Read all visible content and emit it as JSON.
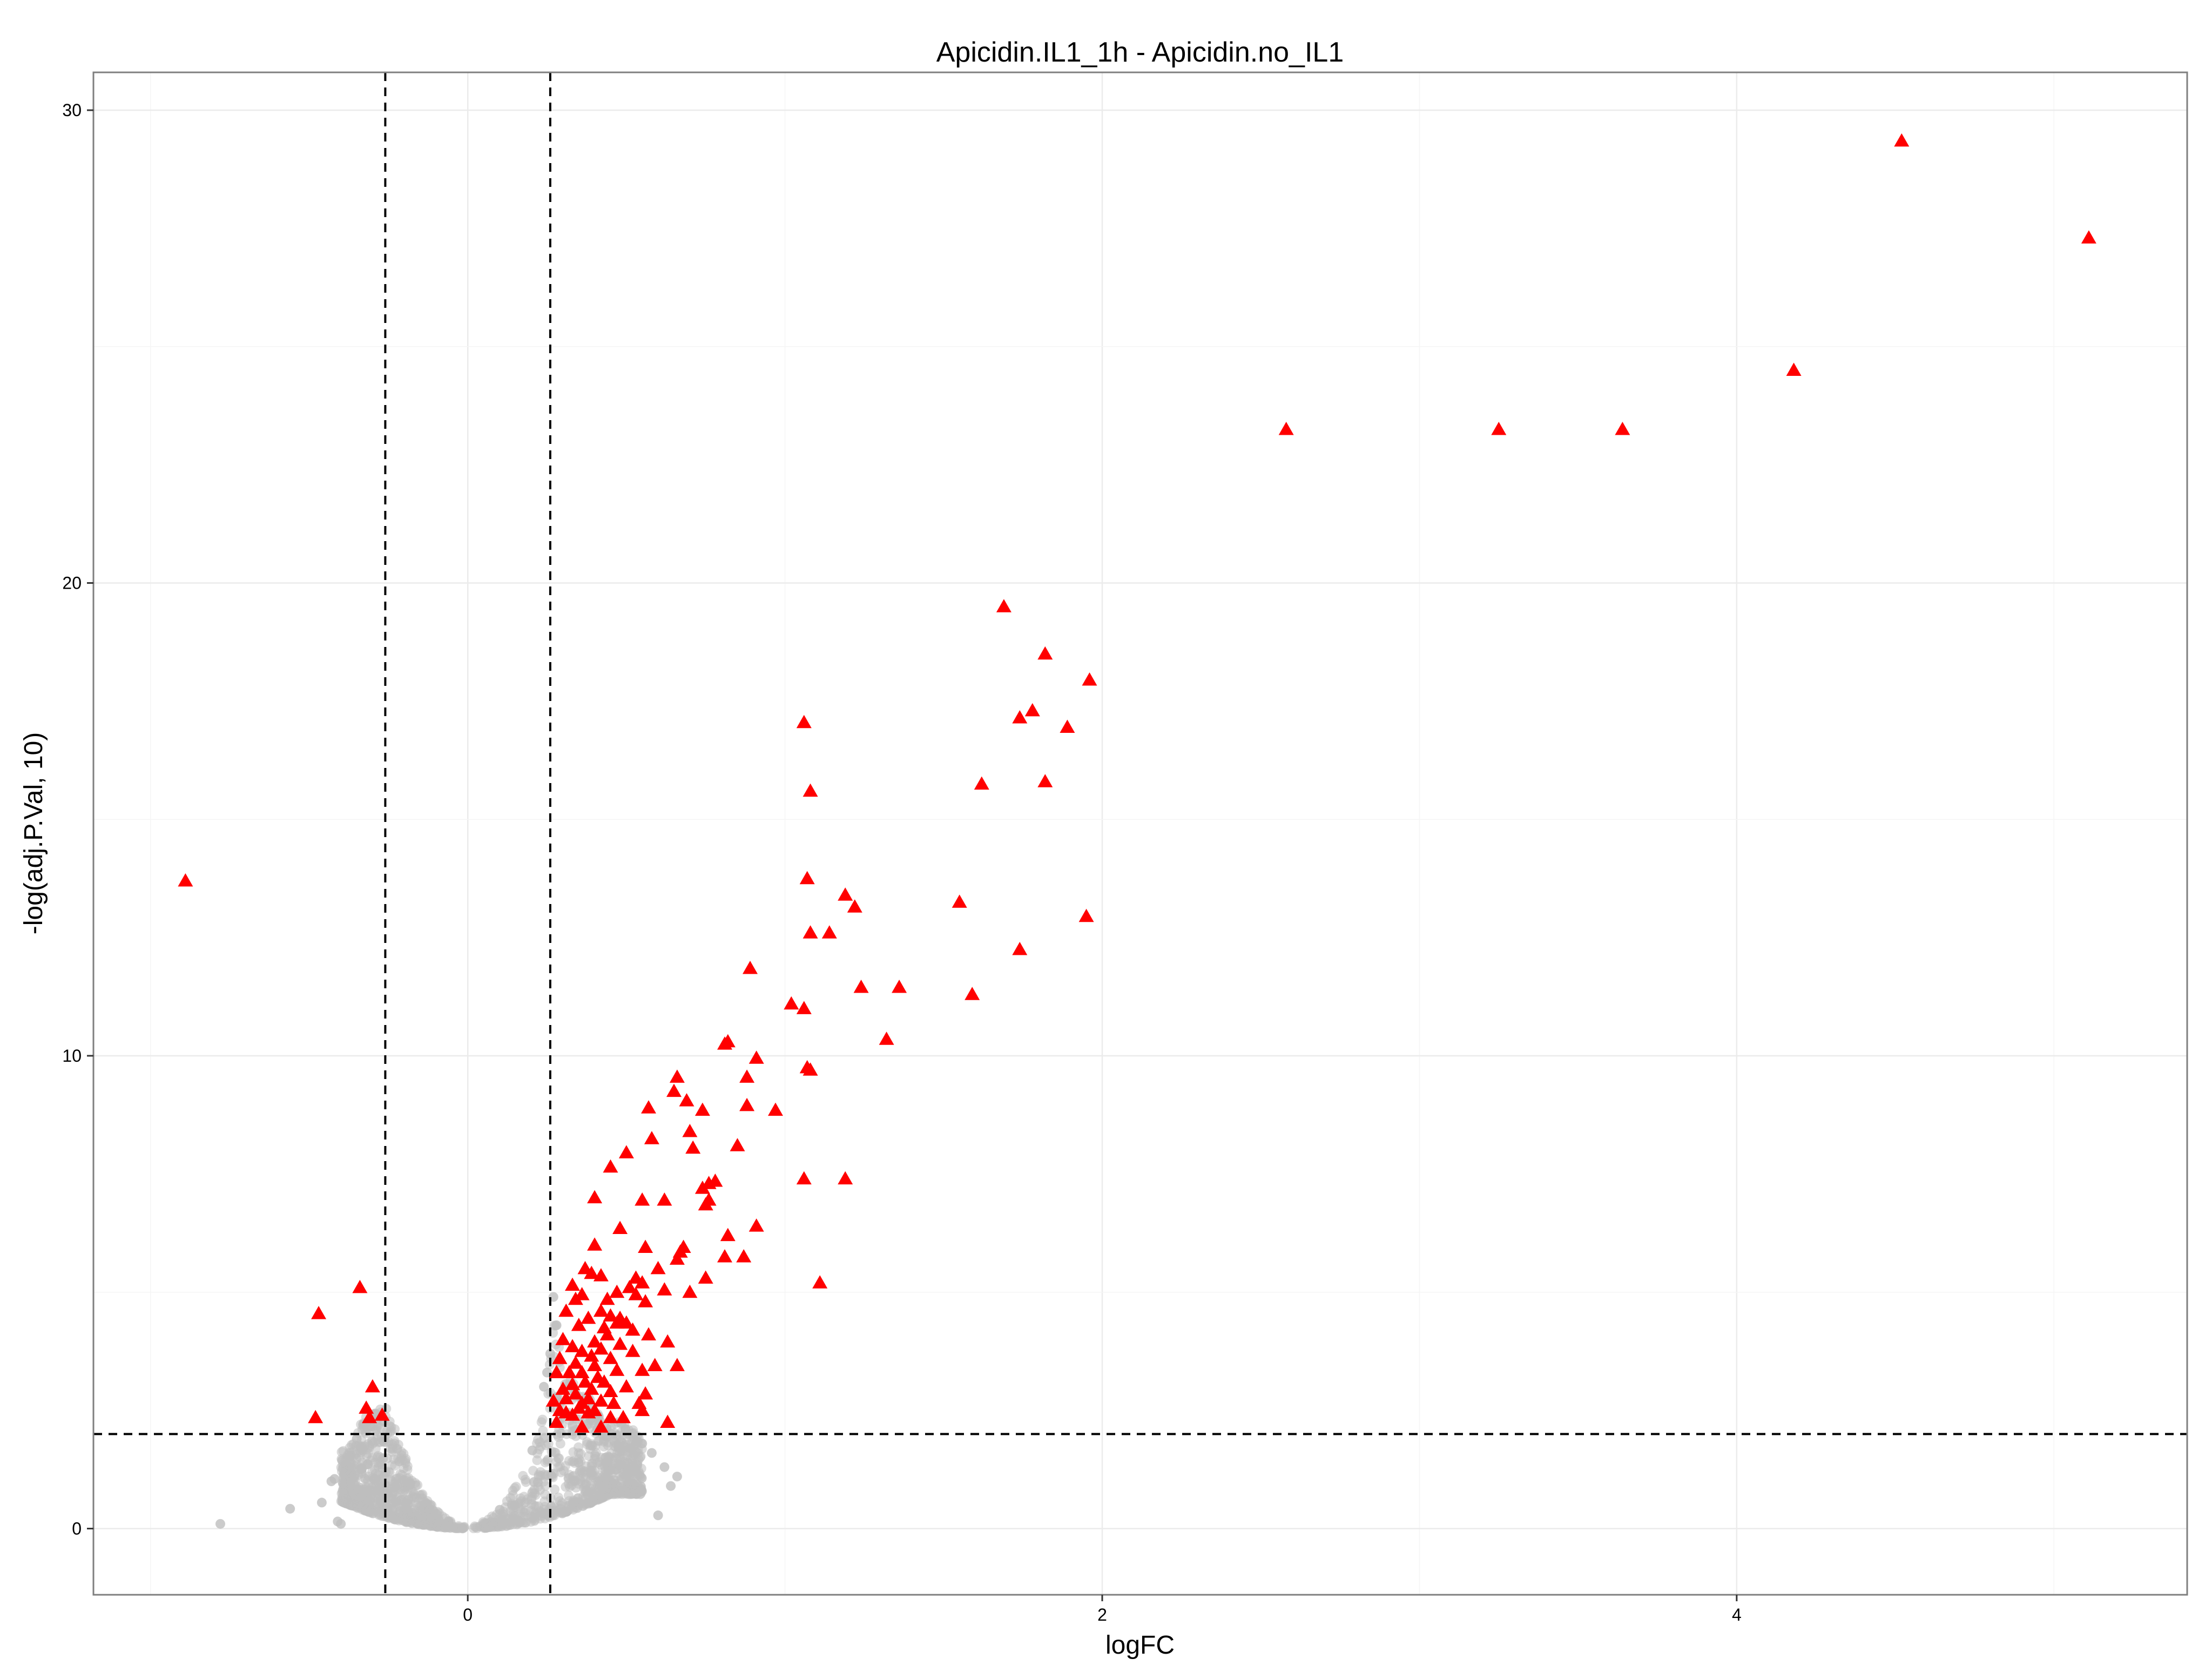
{
  "chart_data": {
    "type": "scatter",
    "title": "Apicidin.IL1_1h - Apicidin.no_IL1",
    "xlabel": "logFC",
    "ylabel": "-log(adj.P.Val, 10)",
    "xlim": [
      -1.18,
      5.42
    ],
    "ylim": [
      -1.4,
      30.8
    ],
    "x_ticks": [
      0,
      2,
      4
    ],
    "x_tick_labels": [
      "0",
      "2",
      "4"
    ],
    "y_ticks": [
      0,
      10,
      20,
      30
    ],
    "y_tick_labels": [
      "0",
      "10",
      "20",
      "30"
    ],
    "grid": true,
    "legend": "none",
    "thresholds": {
      "logFC": [
        -0.26,
        0.26
      ],
      "neg_log_adj_p": 2
    },
    "colors": {
      "significant": "#ff0000",
      "not_significant": "#bebebe",
      "grid_major": "#ebebeb",
      "grid_minor": "#f5f5f5",
      "threshold_line": "#000000",
      "panel_border": "#7f7f7f"
    },
    "series": [
      {
        "marker": "triangle",
        "color": "#ff0000",
        "points": [
          [
            -0.89,
            13.7
          ],
          [
            -0.47,
            4.55
          ],
          [
            -0.34,
            5.1
          ],
          [
            -0.48,
            2.35
          ],
          [
            -0.3,
            3.0
          ],
          [
            -0.32,
            2.55
          ],
          [
            -0.31,
            2.35
          ],
          [
            -0.27,
            2.4
          ],
          [
            4.52,
            29.35
          ],
          [
            5.11,
            27.3
          ],
          [
            4.18,
            24.5
          ],
          [
            3.64,
            23.25
          ],
          [
            3.25,
            23.25
          ],
          [
            2.58,
            23.25
          ],
          [
            1.69,
            19.5
          ],
          [
            1.82,
            18.5
          ],
          [
            1.96,
            17.95
          ],
          [
            1.78,
            17.3
          ],
          [
            1.74,
            17.15
          ],
          [
            1.89,
            16.95
          ],
          [
            1.06,
            17.05
          ],
          [
            1.08,
            15.6
          ],
          [
            1.62,
            15.75
          ],
          [
            1.82,
            15.8
          ],
          [
            1.07,
            13.75
          ],
          [
            1.55,
            13.25
          ],
          [
            1.19,
            13.4
          ],
          [
            1.22,
            13.15
          ],
          [
            1.95,
            12.95
          ],
          [
            1.08,
            12.6
          ],
          [
            1.14,
            12.6
          ],
          [
            1.74,
            12.25
          ],
          [
            0.89,
            11.85
          ],
          [
            1.24,
            11.45
          ],
          [
            1.36,
            11.45
          ],
          [
            1.59,
            11.3
          ],
          [
            1.02,
            11.1
          ],
          [
            1.06,
            11.0
          ],
          [
            1.32,
            10.35
          ],
          [
            0.81,
            10.25
          ],
          [
            0.82,
            10.3
          ],
          [
            0.91,
            9.95
          ],
          [
            1.07,
            9.75
          ],
          [
            1.08,
            9.7
          ],
          [
            0.66,
            9.55
          ],
          [
            0.88,
            9.55
          ],
          [
            0.65,
            9.25
          ],
          [
            0.69,
            9.05
          ],
          [
            0.57,
            8.9
          ],
          [
            0.88,
            8.95
          ],
          [
            0.97,
            8.85
          ],
          [
            0.74,
            8.85
          ],
          [
            0.7,
            8.4
          ],
          [
            0.58,
            8.25
          ],
          [
            0.71,
            8.05
          ],
          [
            0.85,
            8.1
          ],
          [
            0.45,
            7.65
          ],
          [
            0.5,
            7.95
          ],
          [
            0.74,
            7.2
          ],
          [
            0.76,
            7.3
          ],
          [
            0.78,
            7.35
          ],
          [
            1.06,
            7.4
          ],
          [
            1.19,
            7.4
          ],
          [
            0.4,
            7.0
          ],
          [
            0.55,
            6.95
          ],
          [
            0.62,
            6.95
          ],
          [
            0.75,
            6.85
          ],
          [
            0.76,
            6.95
          ],
          [
            0.91,
            6.4
          ],
          [
            0.48,
            6.35
          ],
          [
            0.82,
            6.2
          ],
          [
            0.4,
            6.0
          ],
          [
            0.56,
            5.95
          ],
          [
            0.68,
            5.95
          ],
          [
            0.81,
            5.75
          ],
          [
            0.87,
            5.75
          ],
          [
            0.67,
            5.85
          ],
          [
            0.66,
            5.7
          ],
          [
            0.6,
            5.5
          ],
          [
            0.37,
            5.5
          ],
          [
            0.39,
            5.4
          ],
          [
            0.42,
            5.35
          ],
          [
            0.53,
            5.3
          ],
          [
            0.55,
            5.2
          ],
          [
            0.75,
            5.3
          ],
          [
            1.11,
            5.2
          ],
          [
            0.33,
            5.15
          ],
          [
            0.47,
            5.0
          ],
          [
            0.51,
            5.1
          ],
          [
            0.62,
            5.05
          ],
          [
            0.7,
            5.0
          ],
          [
            0.36,
            4.95
          ],
          [
            0.34,
            4.85
          ],
          [
            0.44,
            4.85
          ],
          [
            0.53,
            4.95
          ],
          [
            0.56,
            4.8
          ],
          [
            0.31,
            4.6
          ],
          [
            0.42,
            4.6
          ],
          [
            0.45,
            4.5
          ],
          [
            0.48,
            4.45
          ],
          [
            0.5,
            4.35
          ],
          [
            0.38,
            4.45
          ],
          [
            0.35,
            4.3
          ],
          [
            0.43,
            4.25
          ],
          [
            0.47,
            4.35
          ],
          [
            0.52,
            4.2
          ],
          [
            0.57,
            4.1
          ],
          [
            0.3,
            4.0
          ],
          [
            0.44,
            4.1
          ],
          [
            0.4,
            3.95
          ],
          [
            0.33,
            3.85
          ],
          [
            0.36,
            3.75
          ],
          [
            0.42,
            3.8
          ],
          [
            0.48,
            3.9
          ],
          [
            0.52,
            3.75
          ],
          [
            0.63,
            3.95
          ],
          [
            0.39,
            3.65
          ],
          [
            0.45,
            3.6
          ],
          [
            0.29,
            3.6
          ],
          [
            0.34,
            3.5
          ],
          [
            0.4,
            3.45
          ],
          [
            0.47,
            3.35
          ],
          [
            0.55,
            3.35
          ],
          [
            0.59,
            3.45
          ],
          [
            0.66,
            3.45
          ],
          [
            0.28,
            3.3
          ],
          [
            0.32,
            3.3
          ],
          [
            0.36,
            3.3
          ],
          [
            0.41,
            3.2
          ],
          [
            0.43,
            3.1
          ],
          [
            0.37,
            3.1
          ],
          [
            0.33,
            3.05
          ],
          [
            0.3,
            2.95
          ],
          [
            0.39,
            2.95
          ],
          [
            0.45,
            2.9
          ],
          [
            0.5,
            3.0
          ],
          [
            0.56,
            2.85
          ],
          [
            0.34,
            2.85
          ],
          [
            0.31,
            2.75
          ],
          [
            0.36,
            2.65
          ],
          [
            0.38,
            2.75
          ],
          [
            0.42,
            2.7
          ],
          [
            0.46,
            2.65
          ],
          [
            0.35,
            2.55
          ],
          [
            0.31,
            2.45
          ],
          [
            0.27,
            2.7
          ],
          [
            0.29,
            2.5
          ],
          [
            0.4,
            2.5
          ],
          [
            0.45,
            2.35
          ],
          [
            0.49,
            2.35
          ],
          [
            0.54,
            2.65
          ],
          [
            0.55,
            2.5
          ],
          [
            0.63,
            2.25
          ],
          [
            0.28,
            2.25
          ],
          [
            0.36,
            2.15
          ],
          [
            0.42,
            2.15
          ],
          [
            0.33,
            2.4
          ],
          [
            0.38,
            2.45
          ]
        ]
      },
      {
        "marker": "circle",
        "color": "#bebebe",
        "density_cloud": {
          "x_range": [
            -0.44,
            0.66
          ],
          "envelope": [
            [
              -0.44,
              1.9
            ],
            [
              -0.38,
              1.6
            ],
            [
              -0.33,
              2.3
            ],
            [
              -0.3,
              2.5
            ],
            [
              -0.26,
              2.6
            ],
            [
              -0.22,
              1.95
            ],
            [
              -0.18,
              1.2
            ],
            [
              -0.14,
              0.7
            ],
            [
              -0.1,
              0.4
            ],
            [
              -0.06,
              0.18
            ],
            [
              -0.03,
              0.07
            ],
            [
              0.0,
              0.03
            ],
            [
              0.03,
              0.07
            ],
            [
              0.06,
              0.2
            ],
            [
              0.1,
              0.45
            ],
            [
              0.14,
              0.8
            ],
            [
              0.18,
              1.3
            ],
            [
              0.22,
              2.0
            ],
            [
              0.25,
              2.9
            ],
            [
              0.27,
              4.9
            ],
            [
              0.3,
              3.3
            ],
            [
              0.35,
              3.1
            ],
            [
              0.42,
              2.4
            ],
            [
              0.5,
              2.2
            ],
            [
              0.58,
              1.8
            ],
            [
              0.66,
              1.3
            ]
          ],
          "sample_points": 1500
        },
        "points": [
          [
            -0.78,
            0.1
          ],
          [
            -0.56,
            0.42
          ],
          [
            -0.4,
            0.1
          ],
          [
            -0.41,
            0.15
          ],
          [
            0.6,
            0.28
          ],
          [
            -0.46,
            0.55
          ],
          [
            -0.43,
            1.0
          ],
          [
            -0.42,
            1.05
          ],
          [
            0.66,
            1.1
          ],
          [
            0.64,
            0.9
          ],
          [
            0.62,
            1.3
          ],
          [
            0.58,
            1.6
          ],
          [
            0.55,
            1.8
          ],
          [
            0.52,
            2.0
          ],
          [
            0.48,
            1.5
          ],
          [
            -0.38,
            1.5
          ],
          [
            -0.35,
            1.9
          ],
          [
            -0.33,
            2.2
          ],
          [
            0.27,
            4.9
          ],
          [
            0.28,
            4.3
          ],
          [
            0.26,
            3.7
          ],
          [
            0.25,
            3.3
          ],
          [
            0.24,
            3.0
          ]
        ]
      }
    ]
  }
}
